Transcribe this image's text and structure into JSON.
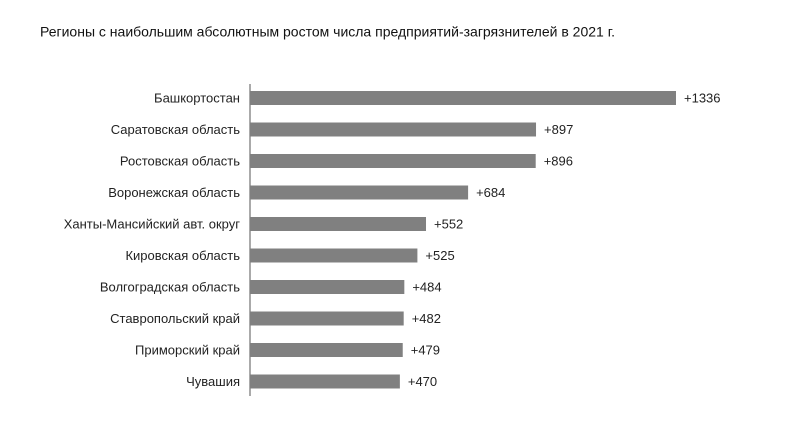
{
  "chart_data": {
    "type": "bar",
    "orientation": "horizontal",
    "title": "Регионы с наибольшим абсолютным ростом числа предприятий-загрязнителей в 2021 г.",
    "categories": [
      "Башкортостан",
      "Саратовская область",
      "Ростовская область",
      "Воронежская область",
      "Ханты-Мансийский авт. округ",
      "Кировская область",
      "Волгоградская область",
      "Ставропольский край",
      "Приморский край",
      "Чувашия"
    ],
    "values": [
      1336,
      897,
      896,
      684,
      552,
      525,
      484,
      482,
      479,
      470
    ],
    "value_labels": [
      "+1336",
      "+897",
      "+896",
      "+684",
      "+552",
      "+525",
      "+484",
      "+482",
      "+479",
      "+470"
    ],
    "color": "#808080"
  }
}
